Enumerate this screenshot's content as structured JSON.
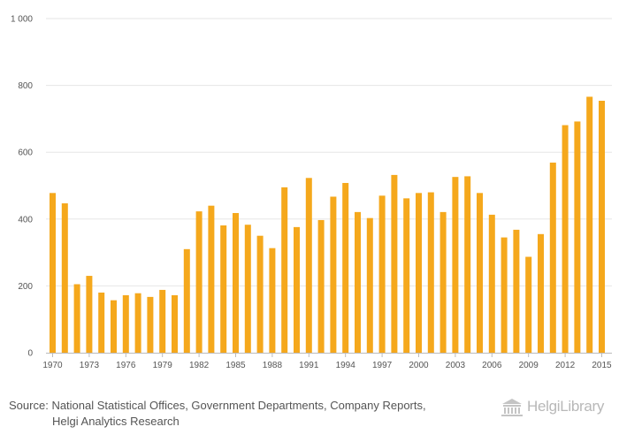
{
  "chart_data": {
    "type": "bar",
    "title": "",
    "xlabel": "",
    "ylabel": "",
    "ylim": [
      0,
      1000
    ],
    "yticks": [
      0,
      200,
      400,
      600,
      800,
      1000
    ],
    "ytick_labels": [
      "0",
      "200",
      "400",
      "600",
      "800",
      "1 000"
    ],
    "xtick_labels": [
      "1970",
      "1973",
      "1976",
      "1979",
      "1982",
      "1985",
      "1988",
      "1991",
      "1994",
      "1997",
      "2000",
      "2003",
      "2006",
      "2009",
      "2012",
      "2015"
    ],
    "categories": [
      "1970",
      "1971",
      "1972",
      "1973",
      "1974",
      "1975",
      "1976",
      "1977",
      "1978",
      "1979",
      "1980",
      "1981",
      "1982",
      "1983",
      "1984",
      "1985",
      "1986",
      "1987",
      "1988",
      "1989",
      "1990",
      "1991",
      "1992",
      "1993",
      "1994",
      "1995",
      "1996",
      "1997",
      "1998",
      "1999",
      "2000",
      "2001",
      "2002",
      "2003",
      "2004",
      "2005",
      "2006",
      "2007",
      "2008",
      "2009",
      "2010",
      "2011",
      "2012",
      "2013",
      "2014",
      "2015"
    ],
    "values": [
      478,
      447,
      205,
      230,
      180,
      157,
      172,
      178,
      167,
      188,
      172,
      310,
      423,
      440,
      381,
      418,
      383,
      350,
      313,
      495,
      376,
      523,
      397,
      467,
      508,
      421,
      403,
      470,
      532,
      462,
      478,
      480,
      421,
      526,
      528,
      478,
      413,
      345,
      368,
      287,
      355,
      569,
      681,
      692,
      766,
      754
    ],
    "grid": true,
    "color": "#f5a81c"
  },
  "source": {
    "label": "Source:",
    "line1": "National Statistical Offices, Government Departments, Company Reports,",
    "line2": "Helgi Analytics Research"
  },
  "logo": {
    "text": "HelgiLibrary"
  }
}
